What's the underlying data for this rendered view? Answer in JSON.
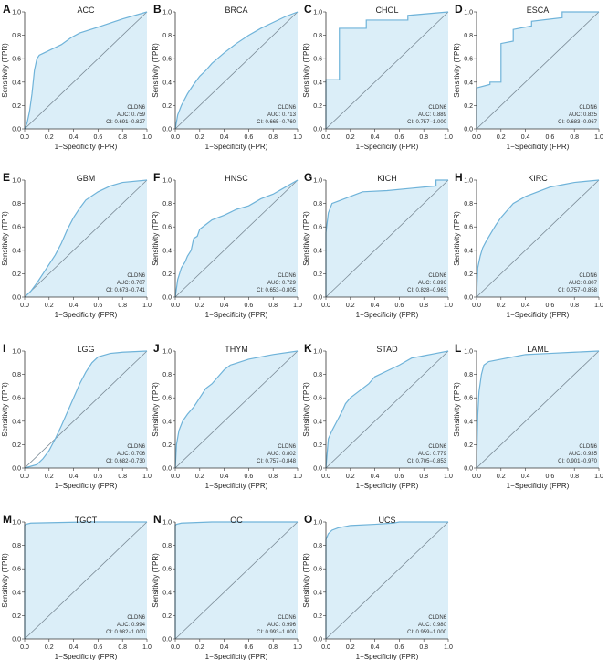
{
  "figure": {
    "xlabel": "1−Specificity (FPR)",
    "ylabel": "Sensitivity (TPR)",
    "ticks": [
      "0.0",
      "0.2",
      "0.4",
      "0.6",
      "0.8",
      "1.0"
    ],
    "colors": {
      "curve": "#6fb3d9",
      "fill": "#dbeef8",
      "diagonal": "#7a8a96",
      "axis": "#333333"
    }
  },
  "chart_data": [
    {
      "letter": "A",
      "title": "ACC",
      "type": "area",
      "gene": "CLDN6",
      "auc": "AUC: 0.759",
      "ci": "CI: 0.691−0.827",
      "xlim": [
        0,
        1
      ],
      "ylim": [
        0,
        1
      ],
      "x": [
        0,
        0.02,
        0.04,
        0.06,
        0.08,
        0.1,
        0.12,
        0.16,
        0.22,
        0.3,
        0.38,
        0.45,
        0.6,
        0.8,
        1.0
      ],
      "y": [
        0,
        0.05,
        0.15,
        0.3,
        0.5,
        0.6,
        0.63,
        0.65,
        0.68,
        0.72,
        0.78,
        0.82,
        0.87,
        0.94,
        1.0
      ]
    },
    {
      "letter": "B",
      "title": "BRCA",
      "type": "area",
      "gene": "CLDN6",
      "auc": "AUC: 0.713",
      "ci": "CI: 0.665−0.760",
      "xlim": [
        0,
        1
      ],
      "ylim": [
        0,
        1
      ],
      "x": [
        0,
        0.02,
        0.05,
        0.1,
        0.15,
        0.2,
        0.25,
        0.3,
        0.4,
        0.5,
        0.6,
        0.7,
        0.8,
        0.9,
        1.0
      ],
      "y": [
        0,
        0.12,
        0.2,
        0.3,
        0.38,
        0.45,
        0.5,
        0.56,
        0.65,
        0.73,
        0.8,
        0.86,
        0.91,
        0.96,
        1.0
      ]
    },
    {
      "letter": "C",
      "title": "CHOL",
      "type": "area",
      "gene": "CLDN6",
      "auc": "AUC: 0.889",
      "ci": "CI: 0.757−1.000",
      "xlim": [
        0,
        1
      ],
      "ylim": [
        0,
        1
      ],
      "x": [
        0,
        0,
        0.11,
        0.11,
        0.11,
        0.33,
        0.33,
        0.67,
        0.67,
        1.0
      ],
      "y": [
        0,
        0.42,
        0.42,
        0.75,
        0.86,
        0.86,
        0.93,
        0.93,
        0.97,
        1.0
      ]
    },
    {
      "letter": "D",
      "title": "ESCA",
      "type": "area",
      "gene": "CLDN6",
      "auc": "AUC: 0.825",
      "ci": "CI: 0.683−0.967",
      "xlim": [
        0,
        1
      ],
      "ylim": [
        0,
        1
      ],
      "x": [
        0,
        0,
        0.11,
        0.11,
        0.2,
        0.2,
        0.3,
        0.3,
        0.45,
        0.45,
        0.7,
        0.7,
        1.0
      ],
      "y": [
        0,
        0.35,
        0.38,
        0.4,
        0.4,
        0.73,
        0.75,
        0.85,
        0.88,
        0.92,
        0.95,
        1.0,
        1.0
      ]
    },
    {
      "letter": "E",
      "title": "GBM",
      "type": "area",
      "gene": "CLDN6",
      "auc": "AUC: 0.707",
      "ci": "CI: 0.673−0.741",
      "xlim": [
        0,
        1
      ],
      "ylim": [
        0,
        1
      ],
      "x": [
        0,
        0.05,
        0.1,
        0.15,
        0.2,
        0.25,
        0.3,
        0.35,
        0.4,
        0.45,
        0.5,
        0.6,
        0.7,
        0.8,
        1.0
      ],
      "y": [
        0,
        0.05,
        0.12,
        0.2,
        0.28,
        0.36,
        0.46,
        0.58,
        0.68,
        0.76,
        0.83,
        0.9,
        0.95,
        0.98,
        1.0
      ]
    },
    {
      "letter": "F",
      "title": "HNSC",
      "type": "area",
      "gene": "CLDN6",
      "auc": "AUC: 0.729",
      "ci": "CI: 0.653−0.805",
      "xlim": [
        0,
        1
      ],
      "ylim": [
        0,
        1
      ],
      "x": [
        0,
        0.02,
        0.05,
        0.08,
        0.1,
        0.13,
        0.15,
        0.18,
        0.2,
        0.25,
        0.3,
        0.4,
        0.5,
        0.6,
        0.7,
        0.8,
        0.9,
        1.0
      ],
      "y": [
        0,
        0.15,
        0.25,
        0.3,
        0.35,
        0.4,
        0.5,
        0.52,
        0.58,
        0.62,
        0.66,
        0.7,
        0.75,
        0.78,
        0.84,
        0.88,
        0.94,
        1.0
      ]
    },
    {
      "letter": "G",
      "title": "KICH",
      "type": "area",
      "gene": "CLDN6",
      "auc": "AUC: 0.896",
      "ci": "CI: 0.828−0.963",
      "xlim": [
        0,
        1
      ],
      "ylim": [
        0,
        1
      ],
      "x": [
        0,
        0,
        0.02,
        0.05,
        0.1,
        0.2,
        0.3,
        0.5,
        0.7,
        0.9,
        0.9,
        1.0
      ],
      "y": [
        0,
        0.55,
        0.72,
        0.8,
        0.82,
        0.86,
        0.9,
        0.91,
        0.93,
        0.95,
        1.0,
        1.0
      ]
    },
    {
      "letter": "H",
      "title": "KIRC",
      "type": "area",
      "gene": "CLDN6",
      "auc": "AUC: 0.807",
      "ci": "CI: 0.757−0.858",
      "xlim": [
        0,
        1
      ],
      "ylim": [
        0,
        1
      ],
      "x": [
        0,
        0.01,
        0.03,
        0.05,
        0.08,
        0.12,
        0.16,
        0.2,
        0.25,
        0.3,
        0.4,
        0.5,
        0.6,
        0.7,
        0.8,
        0.9,
        1.0
      ],
      "y": [
        0,
        0.25,
        0.35,
        0.42,
        0.48,
        0.55,
        0.62,
        0.68,
        0.74,
        0.8,
        0.86,
        0.9,
        0.94,
        0.96,
        0.98,
        0.99,
        1.0
      ]
    },
    {
      "letter": "I",
      "title": "LGG",
      "type": "area",
      "gene": "CLDN6",
      "auc": "AUC: 0.706",
      "ci": "CI: 0.682−0.730",
      "xlim": [
        0,
        1
      ],
      "ylim": [
        0,
        1
      ],
      "x": [
        0,
        0.1,
        0.15,
        0.2,
        0.25,
        0.3,
        0.35,
        0.4,
        0.45,
        0.5,
        0.55,
        0.6,
        0.7,
        0.8,
        1.0
      ],
      "y": [
        0,
        0.03,
        0.08,
        0.15,
        0.25,
        0.36,
        0.48,
        0.6,
        0.72,
        0.82,
        0.9,
        0.95,
        0.98,
        0.99,
        1.0
      ]
    },
    {
      "letter": "J",
      "title": "THYM",
      "type": "area",
      "gene": "CLDN6",
      "auc": "AUC: 0.802",
      "ci": "CI: 0.757−0.848",
      "xlim": [
        0,
        1
      ],
      "ylim": [
        0,
        1
      ],
      "x": [
        0,
        0.01,
        0.03,
        0.06,
        0.1,
        0.15,
        0.2,
        0.25,
        0.3,
        0.35,
        0.4,
        0.45,
        0.6,
        0.8,
        1.0
      ],
      "y": [
        0,
        0.2,
        0.32,
        0.4,
        0.46,
        0.52,
        0.6,
        0.68,
        0.72,
        0.78,
        0.84,
        0.88,
        0.93,
        0.97,
        1.0
      ]
    },
    {
      "letter": "K",
      "title": "STAD",
      "type": "area",
      "gene": "CLDN6",
      "auc": "AUC: 0.779",
      "ci": "CI: 0.705−0.853",
      "xlim": [
        0,
        1
      ],
      "ylim": [
        0,
        1
      ],
      "x": [
        0,
        0.02,
        0.05,
        0.08,
        0.1,
        0.13,
        0.16,
        0.2,
        0.25,
        0.3,
        0.35,
        0.4,
        0.5,
        0.6,
        0.7,
        0.8,
        0.9,
        1.0
      ],
      "y": [
        0,
        0.25,
        0.32,
        0.38,
        0.42,
        0.48,
        0.55,
        0.6,
        0.64,
        0.68,
        0.72,
        0.78,
        0.83,
        0.88,
        0.94,
        0.96,
        0.98,
        1.0
      ]
    },
    {
      "letter": "L",
      "title": "LAML",
      "type": "area",
      "gene": "CLDN6",
      "auc": "AUC: 0.935",
      "ci": "CI: 0.901−0.970",
      "xlim": [
        0,
        1
      ],
      "ylim": [
        0,
        1
      ],
      "x": [
        0,
        0.01,
        0.02,
        0.04,
        0.06,
        0.1,
        0.2,
        0.3,
        0.4,
        0.6,
        0.8,
        1.0
      ],
      "y": [
        0,
        0.45,
        0.65,
        0.8,
        0.88,
        0.91,
        0.93,
        0.95,
        0.97,
        0.98,
        0.99,
        1.0
      ]
    },
    {
      "letter": "M",
      "title": "TGCT",
      "type": "area",
      "gene": "CLDN6",
      "auc": "AUC: 0.994",
      "ci": "CI: 0.982−1.000",
      "xlim": [
        0,
        1
      ],
      "ylim": [
        0,
        1
      ],
      "x": [
        0,
        0,
        0.01,
        0.05,
        0.5,
        1.0
      ],
      "y": [
        0,
        0.97,
        0.98,
        0.99,
        1.0,
        1.0
      ]
    },
    {
      "letter": "N",
      "title": "OC",
      "type": "area",
      "gene": "CLDN6",
      "auc": "AUC: 0.996",
      "ci": "CI: 0.993−1.000",
      "xlim": [
        0,
        1
      ],
      "ylim": [
        0,
        1
      ],
      "x": [
        0,
        0,
        0.01,
        0.05,
        0.3,
        1.0
      ],
      "y": [
        0,
        0.97,
        0.98,
        0.99,
        1.0,
        1.0
      ]
    },
    {
      "letter": "O",
      "title": "UCS",
      "type": "area",
      "gene": "CLDN6",
      "auc": "AUC: 0.980",
      "ci": "CI: 0.959−1.000",
      "xlim": [
        0,
        1
      ],
      "ylim": [
        0,
        1
      ],
      "x": [
        0,
        0,
        0.02,
        0.05,
        0.1,
        0.2,
        0.4,
        0.55,
        0.6,
        1.0
      ],
      "y": [
        0,
        0.85,
        0.9,
        0.93,
        0.95,
        0.97,
        0.98,
        0.99,
        1.0,
        1.0
      ]
    }
  ]
}
